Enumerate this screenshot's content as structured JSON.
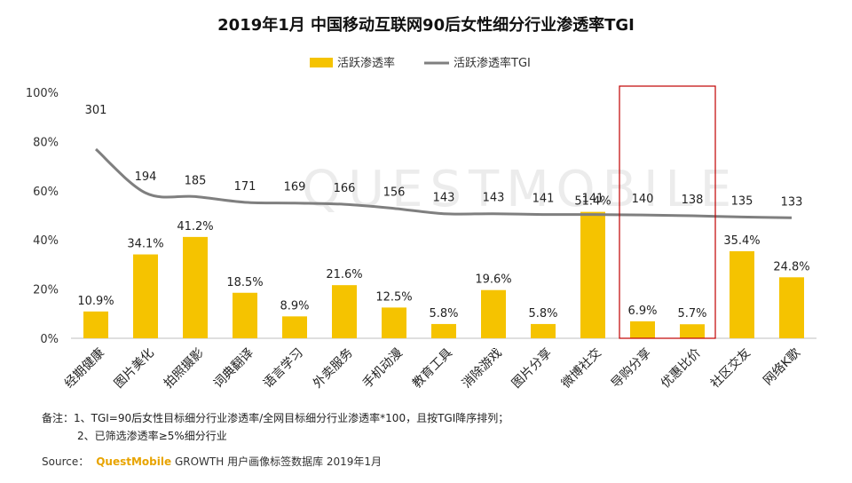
{
  "chart_data": {
    "type": "bar",
    "title": "2019年1月 中国移动互联网90后女性细分行业渗透率TGI",
    "categories": [
      "经期健康",
      "图片美化",
      "拍照摄影",
      "词典翻译",
      "语言学习",
      "外卖服务",
      "手机动漫",
      "教育工具",
      "消除游戏",
      "图片分享",
      "微博社交",
      "导购分享",
      "优惠比价",
      "社区交友",
      "网络K歌"
    ],
    "series": [
      {
        "name": "活跃渗透率",
        "type": "bar",
        "color": "#F5C300",
        "values": [
          10.9,
          34.1,
          41.2,
          18.5,
          8.9,
          21.6,
          12.5,
          5.8,
          19.6,
          5.8,
          51.4,
          6.9,
          5.7,
          35.4,
          24.8
        ],
        "labels": [
          "10.9%",
          "34.1%",
          "41.2%",
          "18.5%",
          "8.9%",
          "21.6%",
          "12.5%",
          "5.8%",
          "19.6%",
          "5.8%",
          "51.4%",
          "6.9%",
          "5.7%",
          "35.4%",
          "24.8%"
        ]
      },
      {
        "name": "活跃渗透率TGI",
        "type": "line",
        "color": "#7F7F7F",
        "values": [
          301,
          194,
          185,
          171,
          169,
          166,
          156,
          143,
          143,
          141,
          141,
          140,
          138,
          135,
          133
        ]
      }
    ],
    "yaxis": {
      "ticks": [
        "0%",
        "20%",
        "40%",
        "60%",
        "80%",
        "100%"
      ],
      "ylim": [
        0,
        100
      ]
    },
    "highlight": {
      "categories": [
        "导购分享",
        "优惠比价"
      ],
      "color": "#C00000"
    },
    "legend": "top-center",
    "grid": false
  },
  "watermark": "QUESTMOBILE",
  "notes": {
    "line1": "备注：1、TGI=90后女性目标细分行业渗透率/全网目标细分行业渗透率*100，且按TGI降序排列；",
    "line2": "2、已筛选渗透率≥5%细分行业"
  },
  "source": {
    "prefix": "Source：",
    "brand": "QuestMobile",
    "suffix": "GROWTH 用户画像标签数据库 2019年1月"
  }
}
